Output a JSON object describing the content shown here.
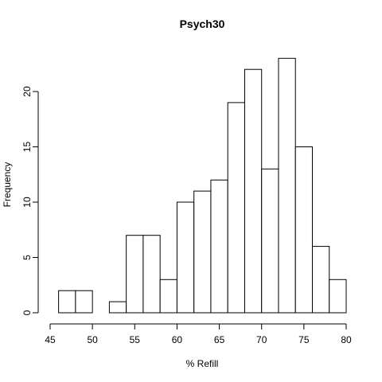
{
  "chart_data": {
    "type": "bar",
    "title": "Psych30",
    "xlabel": "% Refill",
    "ylabel": "Frequency",
    "bins": [
      {
        "start": 46,
        "end": 48,
        "count": 2
      },
      {
        "start": 48,
        "end": 50,
        "count": 2
      },
      {
        "start": 50,
        "end": 52,
        "count": 0
      },
      {
        "start": 52,
        "end": 54,
        "count": 1
      },
      {
        "start": 54,
        "end": 56,
        "count": 7
      },
      {
        "start": 56,
        "end": 58,
        "count": 7
      },
      {
        "start": 58,
        "end": 60,
        "count": 3
      },
      {
        "start": 60,
        "end": 62,
        "count": 10
      },
      {
        "start": 62,
        "end": 64,
        "count": 11
      },
      {
        "start": 64,
        "end": 66,
        "count": 12
      },
      {
        "start": 66,
        "end": 68,
        "count": 19
      },
      {
        "start": 68,
        "end": 70,
        "count": 22
      },
      {
        "start": 70,
        "end": 72,
        "count": 13
      },
      {
        "start": 72,
        "end": 74,
        "count": 23
      },
      {
        "start": 74,
        "end": 76,
        "count": 15
      },
      {
        "start": 76,
        "end": 78,
        "count": 6
      },
      {
        "start": 78,
        "end": 80,
        "count": 3
      }
    ],
    "xlim": [
      45,
      80
    ],
    "ylim": [
      0,
      23
    ],
    "xticks": [
      45,
      50,
      55,
      60,
      65,
      70,
      75,
      80
    ],
    "yticks": [
      0,
      5,
      10,
      15,
      20
    ],
    "grid": false,
    "legend": false
  }
}
